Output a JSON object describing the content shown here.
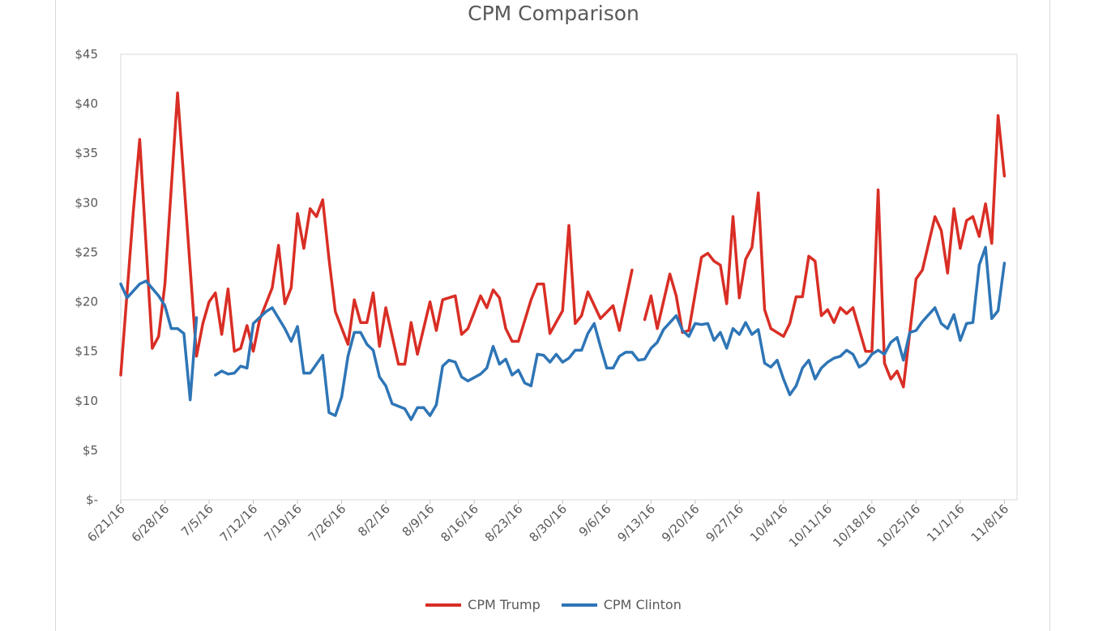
{
  "chart_data": {
    "type": "line",
    "title": "CPM Comparison",
    "xlabel": "",
    "ylabel": "",
    "ylim": [
      0,
      45
    ],
    "xlim": [
      "6/21/16",
      "11/10/16"
    ],
    "y_ticks": [
      {
        "value": 0,
        "label": "$-"
      },
      {
        "value": 5,
        "label": "$5"
      },
      {
        "value": 10,
        "label": "$10"
      },
      {
        "value": 15,
        "label": "$15"
      },
      {
        "value": 20,
        "label": "$20"
      },
      {
        "value": 25,
        "label": "$25"
      },
      {
        "value": 30,
        "label": "$30"
      },
      {
        "value": 35,
        "label": "$35"
      },
      {
        "value": 40,
        "label": "$40"
      },
      {
        "value": 45,
        "label": "$45"
      }
    ],
    "x_ticks": [
      "6/21/16",
      "6/28/16",
      "7/5/16",
      "7/12/16",
      "7/19/16",
      "7/26/16",
      "8/2/16",
      "8/9/16",
      "8/16/16",
      "8/23/16",
      "8/30/16",
      "9/6/16",
      "9/13/16",
      "9/20/16",
      "9/27/16",
      "10/4/16",
      "10/11/16",
      "10/18/16",
      "10/25/16",
      "11/1/16",
      "11/8/16"
    ],
    "grid": false,
    "legend_position": "bottom",
    "series": [
      {
        "name": "CPM Trump",
        "color": "#d92e25",
        "points": [
          [
            "6/21/16",
            12.6
          ],
          [
            "6/23/16",
            29.2
          ],
          [
            "6/24/16",
            36.4
          ],
          [
            "6/26/16",
            15.3
          ],
          [
            "6/27/16",
            16.5
          ],
          [
            "6/28/16",
            21.8
          ],
          [
            "6/30/16",
            41.1
          ],
          [
            "7/3/16",
            14.5
          ],
          [
            "7/4/16",
            17.8
          ],
          [
            "7/5/16",
            20
          ],
          [
            "7/6/16",
            20.9
          ],
          [
            "7/7/16",
            16.7
          ],
          [
            "7/8/16",
            21.3
          ],
          [
            "7/9/16",
            15
          ],
          [
            "7/10/16",
            15.3
          ],
          [
            "7/11/16",
            17.6
          ],
          [
            "7/12/16",
            15
          ],
          [
            "7/13/16",
            18.2
          ],
          [
            "7/15/16",
            21.4
          ],
          [
            "7/16/16",
            25.7
          ],
          [
            "7/17/16",
            19.8
          ],
          [
            "7/18/16",
            21.4
          ],
          [
            "7/19/16",
            28.9
          ],
          [
            "7/20/16",
            25.4
          ],
          [
            "7/21/16",
            29.4
          ],
          [
            "7/22/16",
            28.6
          ],
          [
            "7/23/16",
            30.3
          ],
          [
            "7/24/16",
            24.3
          ],
          [
            "7/25/16",
            19
          ],
          [
            "7/27/16",
            15.7
          ],
          [
            "7/28/16",
            20.2
          ],
          [
            "7/29/16",
            17.9
          ],
          [
            "7/30/16",
            17.9
          ],
          [
            "7/31/16",
            20.9
          ],
          [
            "8/1/16",
            15.5
          ],
          [
            "8/2/16",
            19.4
          ],
          [
            "8/4/16",
            13.7
          ],
          [
            "8/5/16",
            13.7
          ],
          [
            "8/6/16",
            17.9
          ],
          [
            "8/7/16",
            14.7
          ],
          [
            "8/9/16",
            20
          ],
          [
            "8/10/16",
            17.1
          ],
          [
            "8/11/16",
            20.2
          ],
          [
            "8/13/16",
            20.6
          ],
          [
            "8/14/16",
            16.7
          ],
          [
            "8/15/16",
            17.3
          ],
          [
            "8/17/16",
            20.6
          ],
          [
            "8/18/16",
            19.4
          ],
          [
            "8/19/16",
            21.2
          ],
          [
            "8/20/16",
            20.4
          ],
          [
            "8/21/16",
            17.3
          ],
          [
            "8/22/16",
            16
          ],
          [
            "8/23/16",
            16
          ],
          [
            "8/25/16",
            20.2
          ],
          [
            "8/26/16",
            21.8
          ],
          [
            "8/27/16",
            21.8
          ],
          [
            "8/28/16",
            16.8
          ],
          [
            "8/30/16",
            19.1
          ],
          [
            "8/31/16",
            27.7
          ],
          [
            "9/1/16",
            17.8
          ],
          [
            "9/2/16",
            18.6
          ],
          [
            "9/3/16",
            21
          ],
          [
            "9/5/16",
            18.3
          ],
          [
            "9/7/16",
            19.6
          ],
          [
            "9/8/16",
            17.1
          ],
          [
            "9/10/16",
            23.2
          ],
          [
            "9/11/16",
            null
          ],
          [
            "9/12/16",
            18.2
          ],
          [
            "9/13/16",
            20.6
          ],
          [
            "9/14/16",
            17.3
          ],
          [
            "9/16/16",
            22.8
          ],
          [
            "9/17/16",
            20.6
          ],
          [
            "9/18/16",
            16.9
          ],
          [
            "9/19/16",
            17.1
          ],
          [
            "9/21/16",
            24.5
          ],
          [
            "9/22/16",
            24.9
          ],
          [
            "9/23/16",
            24.1
          ],
          [
            "9/24/16",
            23.7
          ],
          [
            "9/25/16",
            19.8
          ],
          [
            "9/26/16",
            28.6
          ],
          [
            "9/27/16",
            20.4
          ],
          [
            "9/28/16",
            24.3
          ],
          [
            "9/29/16",
            25.5
          ],
          [
            "9/30/16",
            31
          ],
          [
            "10/1/16",
            19.2
          ],
          [
            "10/2/16",
            17.3
          ],
          [
            "10/4/16",
            16.5
          ],
          [
            "10/5/16",
            17.8
          ],
          [
            "10/6/16",
            20.5
          ],
          [
            "10/7/16",
            20.5
          ],
          [
            "10/8/16",
            24.6
          ],
          [
            "10/9/16",
            24.1
          ],
          [
            "10/10/16",
            18.6
          ],
          [
            "10/11/16",
            19.2
          ],
          [
            "10/12/16",
            17.9
          ],
          [
            "10/13/16",
            19.4
          ],
          [
            "10/14/16",
            18.8
          ],
          [
            "10/15/16",
            19.4
          ],
          [
            "10/17/16",
            15
          ],
          [
            "10/18/16",
            15
          ],
          [
            "10/19/16",
            31.3
          ],
          [
            "10/20/16",
            13.8
          ],
          [
            "10/21/16",
            12.2
          ],
          [
            "10/22/16",
            13
          ],
          [
            "10/23/16",
            11.4
          ],
          [
            "10/25/16",
            22.3
          ],
          [
            "10/26/16",
            23.2
          ],
          [
            "10/28/16",
            28.6
          ],
          [
            "10/29/16",
            27.2
          ],
          [
            "10/30/16",
            22.9
          ],
          [
            "10/31/16",
            29.4
          ],
          [
            "11/1/16",
            25.4
          ],
          [
            "11/2/16",
            28.2
          ],
          [
            "11/3/16",
            28.6
          ],
          [
            "11/4/16",
            26.6
          ],
          [
            "11/5/16",
            29.9
          ],
          [
            "11/6/16",
            25.9
          ],
          [
            "11/7/16",
            38.8
          ],
          [
            "11/8/16",
            32.7
          ]
        ]
      },
      {
        "name": "CPM Clinton",
        "color": "#2e75b6",
        "points": [
          [
            "6/21/16",
            21.8
          ],
          [
            "6/22/16",
            20.4
          ],
          [
            "6/24/16",
            21.8
          ],
          [
            "6/25/16",
            22.1
          ],
          [
            "6/27/16",
            20.6
          ],
          [
            "6/28/16",
            19.6
          ],
          [
            "6/29/16",
            17.3
          ],
          [
            "6/30/16",
            17.3
          ],
          [
            "7/1/16",
            16.8
          ],
          [
            "7/2/16",
            10.1
          ],
          [
            "7/3/16",
            18.4
          ],
          [
            "7/4/16",
            null
          ],
          [
            "7/6/16",
            12.6
          ],
          [
            "7/7/16",
            13
          ],
          [
            "7/8/16",
            12.7
          ],
          [
            "7/9/16",
            12.8
          ],
          [
            "7/10/16",
            13.5
          ],
          [
            "7/11/16",
            13.3
          ],
          [
            "7/12/16",
            17.8
          ],
          [
            "7/14/16",
            19
          ],
          [
            "7/15/16",
            19.4
          ],
          [
            "7/17/16",
            17.3
          ],
          [
            "7/18/16",
            16
          ],
          [
            "7/19/16",
            17.5
          ],
          [
            "7/20/16",
            12.8
          ],
          [
            "7/21/16",
            12.8
          ],
          [
            "7/23/16",
            14.6
          ],
          [
            "7/24/16",
            8.8
          ],
          [
            "7/25/16",
            8.5
          ],
          [
            "7/26/16",
            10.4
          ],
          [
            "7/27/16",
            14.5
          ],
          [
            "7/28/16",
            16.9
          ],
          [
            "7/29/16",
            16.9
          ],
          [
            "7/30/16",
            15.7
          ],
          [
            "7/31/16",
            15.1
          ],
          [
            "8/1/16",
            12.4
          ],
          [
            "8/2/16",
            11.5
          ],
          [
            "8/3/16",
            9.7
          ],
          [
            "8/5/16",
            9.2
          ],
          [
            "8/6/16",
            8.1
          ],
          [
            "8/7/16",
            9.3
          ],
          [
            "8/8/16",
            9.3
          ],
          [
            "8/9/16",
            8.5
          ],
          [
            "8/10/16",
            9.6
          ],
          [
            "8/11/16",
            13.5
          ],
          [
            "8/12/16",
            14.1
          ],
          [
            "8/13/16",
            13.9
          ],
          [
            "8/14/16",
            12.4
          ],
          [
            "8/15/16",
            12
          ],
          [
            "8/17/16",
            12.7
          ],
          [
            "8/18/16",
            13.3
          ],
          [
            "8/19/16",
            15.5
          ],
          [
            "8/20/16",
            13.7
          ],
          [
            "8/21/16",
            14.2
          ],
          [
            "8/22/16",
            12.6
          ],
          [
            "8/23/16",
            13.1
          ],
          [
            "8/24/16",
            11.8
          ],
          [
            "8/25/16",
            11.5
          ],
          [
            "8/26/16",
            14.7
          ],
          [
            "8/27/16",
            14.6
          ],
          [
            "8/28/16",
            13.9
          ],
          [
            "8/29/16",
            14.7
          ],
          [
            "8/30/16",
            13.9
          ],
          [
            "8/31/16",
            14.3
          ],
          [
            "9/1/16",
            15.1
          ],
          [
            "9/2/16",
            15.1
          ],
          [
            "9/3/16",
            16.8
          ],
          [
            "9/4/16",
            17.8
          ],
          [
            "9/5/16",
            15.5
          ],
          [
            "9/6/16",
            13.3
          ],
          [
            "9/7/16",
            13.3
          ],
          [
            "9/8/16",
            14.5
          ],
          [
            "9/9/16",
            14.9
          ],
          [
            "9/10/16",
            14.9
          ],
          [
            "9/11/16",
            14.1
          ],
          [
            "9/12/16",
            14.2
          ],
          [
            "9/13/16",
            15.3
          ],
          [
            "9/14/16",
            15.9
          ],
          [
            "9/15/16",
            17.2
          ],
          [
            "9/17/16",
            18.6
          ],
          [
            "9/18/16",
            17.1
          ],
          [
            "9/19/16",
            16.5
          ],
          [
            "9/20/16",
            17.8
          ],
          [
            "9/21/16",
            17.7
          ],
          [
            "9/22/16",
            17.8
          ],
          [
            "9/23/16",
            16.1
          ],
          [
            "9/24/16",
            16.9
          ],
          [
            "9/25/16",
            15.3
          ],
          [
            "9/26/16",
            17.3
          ],
          [
            "9/27/16",
            16.7
          ],
          [
            "9/28/16",
            17.9
          ],
          [
            "9/29/16",
            16.7
          ],
          [
            "9/30/16",
            17.2
          ],
          [
            "10/1/16",
            13.8
          ],
          [
            "10/2/16",
            13.4
          ],
          [
            "10/3/16",
            14.1
          ],
          [
            "10/4/16",
            12.2
          ],
          [
            "10/5/16",
            10.6
          ],
          [
            "10/6/16",
            11.5
          ],
          [
            "10/7/16",
            13.3
          ],
          [
            "10/8/16",
            14.1
          ],
          [
            "10/9/16",
            12.2
          ],
          [
            "10/10/16",
            13.3
          ],
          [
            "10/11/16",
            13.9
          ],
          [
            "10/12/16",
            14.3
          ],
          [
            "10/13/16",
            14.5
          ],
          [
            "10/14/16",
            15.1
          ],
          [
            "10/15/16",
            14.7
          ],
          [
            "10/16/16",
            13.4
          ],
          [
            "10/17/16",
            13.8
          ],
          [
            "10/18/16",
            14.7
          ],
          [
            "10/19/16",
            15.1
          ],
          [
            "10/20/16",
            14.7
          ],
          [
            "10/21/16",
            15.9
          ],
          [
            "10/22/16",
            16.4
          ],
          [
            "10/23/16",
            14.1
          ],
          [
            "10/24/16",
            16.9
          ],
          [
            "10/25/16",
            17.1
          ],
          [
            "10/26/16",
            18
          ],
          [
            "10/28/16",
            19.4
          ],
          [
            "10/29/16",
            17.8
          ],
          [
            "10/30/16",
            17.3
          ],
          [
            "10/31/16",
            18.7
          ],
          [
            "11/1/16",
            16.1
          ],
          [
            "11/2/16",
            17.8
          ],
          [
            "11/3/16",
            17.9
          ],
          [
            "11/4/16",
            23.7
          ],
          [
            "11/5/16",
            25.5
          ],
          [
            "11/6/16",
            18.3
          ],
          [
            "11/7/16",
            19.1
          ],
          [
            "11/8/16",
            23.9
          ]
        ]
      }
    ]
  }
}
